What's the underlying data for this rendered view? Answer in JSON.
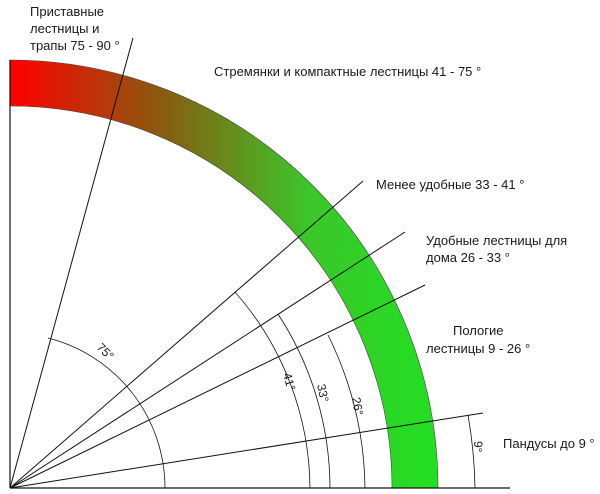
{
  "labels": {
    "ladders_75_90": [
      "Приставные",
      "лестницы и",
      "трапы 75 - 90 °"
    ],
    "stepladders_41_75": "Стремянки и компактные лестницы 41 - 75 °",
    "less_comfortable_33_41": "Менее удобные 33 - 41 °",
    "comfortable_26_33": [
      "Удобные лестницы для",
      "дома 26 - 33 °"
    ],
    "gentle_9_26": [
      "Пологие",
      "лестницы 9 - 26 °"
    ],
    "ramps_0_9": "Пандусы до 9 °"
  },
  "angle_marks": {
    "a75": "75°",
    "a41": "41°",
    "a33": "33°",
    "a26": "26°",
    "a9": "9°"
  },
  "colors": {
    "band_start": "#ff0000",
    "band_mid": "#8a5a10",
    "band_end": "#22dd22",
    "line": "#111111"
  }
}
